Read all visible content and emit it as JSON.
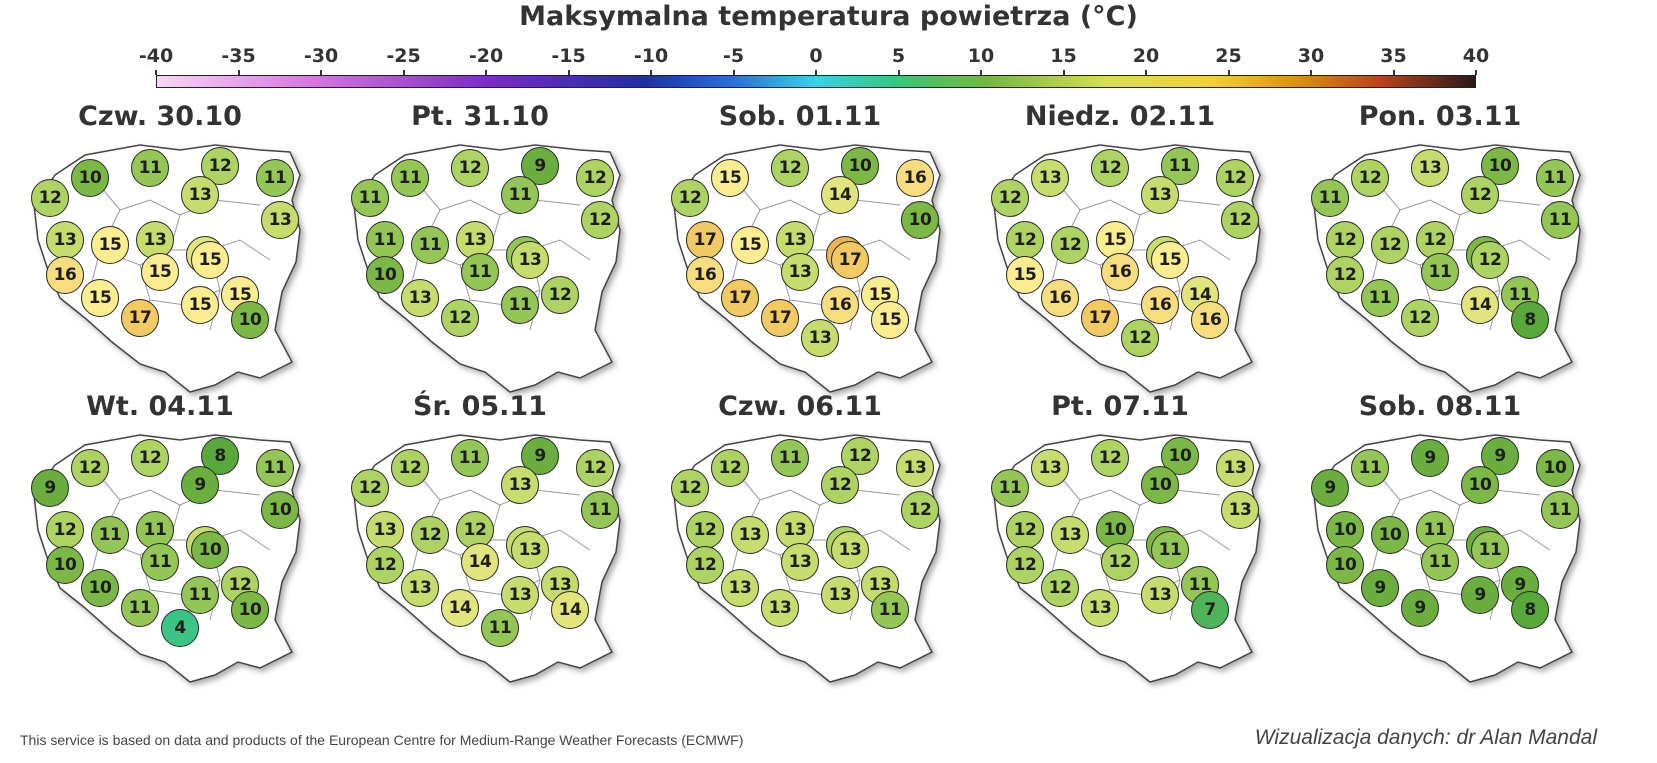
{
  "title": "Maksymalna temperatura powietrza (°C)",
  "scale": {
    "ticks": [
      "-40",
      "-35",
      "-30",
      "-25",
      "-20",
      "-15",
      "-10",
      "-5",
      "0",
      "5",
      "10",
      "15",
      "20",
      "25",
      "30",
      "35",
      "40"
    ]
  },
  "colors": {
    "bubble_4": "#3cc485",
    "bubble_7": "#4fb35a",
    "bubble_8": "#58a83c",
    "bubble_9": "#6aae3e",
    "bubble_10": "#7bb846",
    "bubble_11": "#93c655",
    "bubble_12": "#add362",
    "bubble_13": "#c6dd6e",
    "bubble_14": "#e2e57d",
    "bubble_15": "#fbed90",
    "bubble_16": "#f8dd7e",
    "bubble_17": "#f2c962",
    "bubble_18": "#eab552"
  },
  "days": [
    {
      "label": "Czw. 30.10",
      "values": [
        "10",
        "11",
        "12",
        "11",
        "12",
        "13",
        "13",
        "13",
        "15",
        "13",
        "14",
        "16",
        "15",
        "15",
        "15",
        "15",
        "17",
        "15",
        "10"
      ]
    },
    {
      "label": "Pt. 31.10",
      "values": [
        "11",
        "12",
        "9",
        "12",
        "11",
        "11",
        "12",
        "11",
        "11",
        "13",
        "11",
        "10",
        "11",
        "13",
        "12",
        "13",
        "12",
        "11"
      ]
    },
    {
      "label": "Sob. 01.11",
      "values": [
        "15",
        "12",
        "10",
        "16",
        "12",
        "14",
        "10",
        "17",
        "15",
        "13",
        "18",
        "16",
        "13",
        "17",
        "15",
        "17",
        "17",
        "16",
        "15",
        "13"
      ]
    },
    {
      "label": "Niedz. 02.11",
      "values": [
        "13",
        "12",
        "11",
        "12",
        "12",
        "13",
        "12",
        "12",
        "12",
        "15",
        "13",
        "15",
        "16",
        "15",
        "14",
        "16",
        "17",
        "16",
        "16",
        "12"
      ]
    },
    {
      "label": "Pon. 03.11",
      "values": [
        "12",
        "13",
        "10",
        "11",
        "11",
        "12",
        "11",
        "12",
        "12",
        "12",
        "10",
        "12",
        "11",
        "12",
        "11",
        "11",
        "12",
        "14",
        "8"
      ]
    },
    {
      "label": "Wt. 04.11",
      "values": [
        "12",
        "12",
        "8",
        "11",
        "9",
        "9",
        "10",
        "12",
        "11",
        "11",
        "13",
        "10",
        "11",
        "10",
        "12",
        "10",
        "11",
        "11",
        "10",
        "4"
      ]
    },
    {
      "label": "Śr. 05.11",
      "values": [
        "12",
        "11",
        "9",
        "12",
        "12",
        "13",
        "11",
        "13",
        "12",
        "12",
        "13",
        "12",
        "14",
        "13",
        "13",
        "13",
        "14",
        "13",
        "14",
        "11"
      ]
    },
    {
      "label": "Czw. 06.11",
      "values": [
        "12",
        "11",
        "12",
        "13",
        "12",
        "12",
        "12",
        "12",
        "13",
        "13",
        "12",
        "12",
        "13",
        "13",
        "13",
        "13",
        "13",
        "13",
        "11"
      ]
    },
    {
      "label": "Pt. 07.11",
      "values": [
        "13",
        "12",
        "10",
        "13",
        "11",
        "10",
        "13",
        "12",
        "13",
        "10",
        "10",
        "12",
        "12",
        "11",
        "11",
        "12",
        "13",
        "13",
        "7"
      ]
    },
    {
      "label": "Sob. 08.11",
      "values": [
        "11",
        "9",
        "9",
        "10",
        "9",
        "10",
        "11",
        "10",
        "10",
        "11",
        "9",
        "10",
        "11",
        "11",
        "9",
        "9",
        "9",
        "9",
        "8"
      ]
    }
  ],
  "footer": {
    "source": "This service is based on data and products of the European Centre for Medium-Range Weather Forecasts (ECMWF)",
    "credit": "Wizualizacja danych: dr Alan Mandal"
  }
}
